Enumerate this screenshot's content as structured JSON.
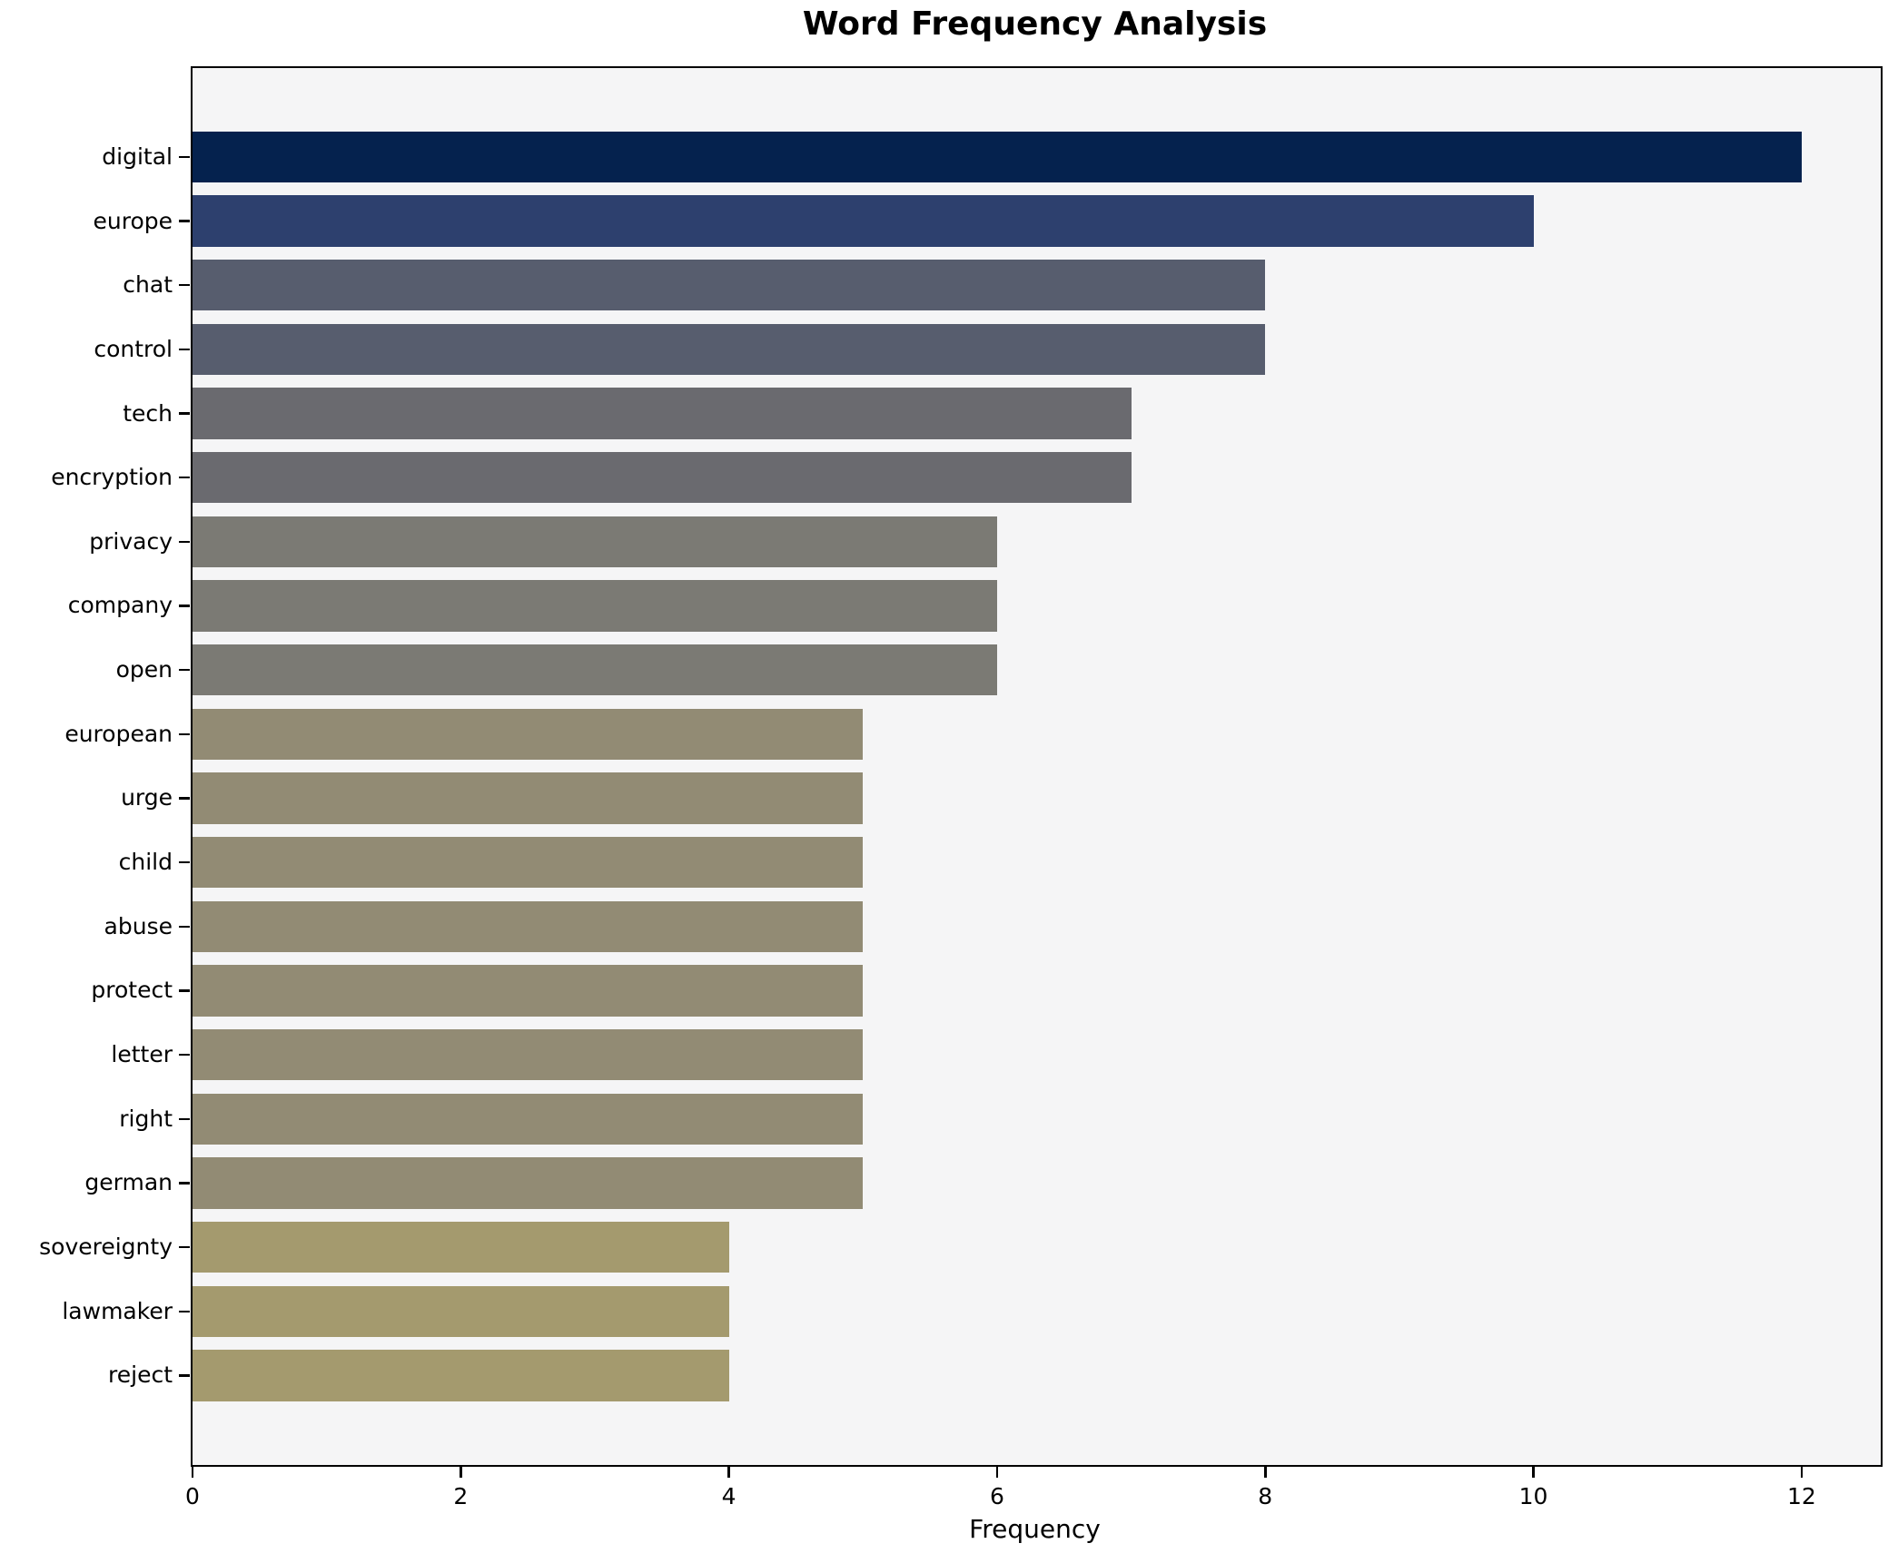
{
  "chart_data": {
    "type": "bar",
    "orientation": "horizontal",
    "title": "Word Frequency Analysis",
    "xlabel": "Frequency",
    "ylabel": "",
    "categories": [
      "digital",
      "europe",
      "chat",
      "control",
      "tech",
      "encryption",
      "privacy",
      "company",
      "open",
      "european",
      "urge",
      "child",
      "abuse",
      "protect",
      "letter",
      "right",
      "german",
      "sovereignty",
      "lawmaker",
      "reject"
    ],
    "values": [
      12,
      10,
      8,
      8,
      7,
      7,
      6,
      6,
      6,
      5,
      5,
      5,
      5,
      5,
      5,
      5,
      5,
      4,
      4,
      4
    ],
    "bar_colors": [
      "#05224e",
      "#2d406e",
      "#575d6e",
      "#575d6e",
      "#6a6a6f",
      "#6a6a6f",
      "#7b7a74",
      "#7b7a74",
      "#7b7a74",
      "#928b74",
      "#928b74",
      "#928b74",
      "#928b74",
      "#928b74",
      "#928b74",
      "#928b74",
      "#928b74",
      "#a49a6e",
      "#a49a6e",
      "#a49a6e"
    ],
    "x_ticks": [
      0,
      2,
      4,
      6,
      8,
      10,
      12
    ],
    "xlim": [
      0,
      12.59
    ],
    "grid": false,
    "legend": "none",
    "plot_background": "#f5f5f6",
    "figure_background": "#ffffff",
    "text_color": "#000000"
  }
}
